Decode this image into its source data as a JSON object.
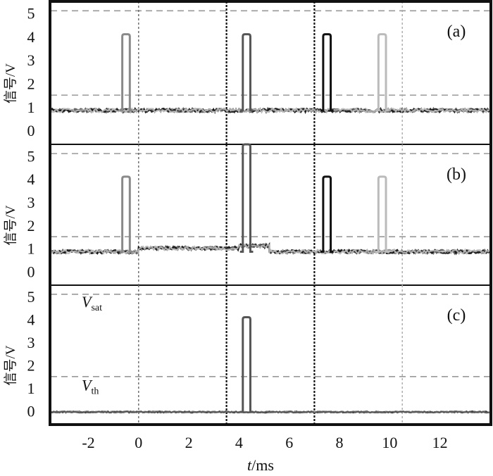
{
  "chart_data": {
    "type": "line",
    "xlabel": {
      "var": "t",
      "unit": "/ms"
    },
    "ylabel": "信号/V",
    "xlim": [
      -3.5,
      14
    ],
    "x_ticks": [
      -2,
      0,
      2,
      4,
      6,
      8,
      10,
      12
    ],
    "y_ticks": [
      0,
      1,
      2,
      3,
      4,
      5
    ],
    "ylim": [
      -0.6,
      5.5
    ],
    "grid": "off",
    "vertical_markers": [
      {
        "x": 0,
        "style": "dotted-grey"
      },
      {
        "x": 3.5,
        "style": "dotted-black"
      },
      {
        "x": 7,
        "style": "dotted-black"
      },
      {
        "x": 10.5,
        "style": "dotted-light"
      }
    ],
    "panels": [
      {
        "label": "(a)",
        "reference_lines": {
          "V_sat": 5.1,
          "V_th": 1.5
        },
        "baseline_segments": [
          {
            "x_start": -3.5,
            "x_end": 14,
            "level": 0.85,
            "ripple": 0.08
          }
        ],
        "series": [
          {
            "color": "#8a8a8a",
            "pulse_start": -0.65,
            "pulse_end": -0.35,
            "peak": 4.1
          },
          {
            "color": "#555555",
            "pulse_start": 4.15,
            "pulse_end": 4.45,
            "peak": 4.1
          },
          {
            "color": "#111111",
            "pulse_start": 7.35,
            "pulse_end": 7.65,
            "peak": 4.1
          },
          {
            "color": "#bbbbbb",
            "pulse_start": 9.55,
            "pulse_end": 9.85,
            "peak": 4.1
          }
        ]
      },
      {
        "label": "(b)",
        "reference_lines": {
          "V_sat": 5.1,
          "V_th": 1.5
        },
        "baseline_segments": [
          {
            "x_start": -3.5,
            "x_end": 0,
            "level": 0.85,
            "ripple": 0.08
          },
          {
            "x_start": 0,
            "x_end": 4,
            "level": 1.0,
            "ripple": 0.08
          },
          {
            "x_start": 4,
            "x_end": 5.2,
            "level": 1.1,
            "ripple": 0.08
          },
          {
            "x_start": 5.2,
            "x_end": 14,
            "level": 0.85,
            "ripple": 0.08
          }
        ],
        "series": [
          {
            "color": "#8a8a8a",
            "pulse_start": -0.65,
            "pulse_end": -0.35,
            "peak": 4.1
          },
          {
            "color": "#555555",
            "pulse_start": 4.15,
            "pulse_end": 4.45,
            "peak": 5.5
          },
          {
            "color": "#111111",
            "pulse_start": 7.35,
            "pulse_end": 7.65,
            "peak": 4.1
          },
          {
            "color": "#bbbbbb",
            "pulse_start": 9.55,
            "pulse_end": 9.85,
            "peak": 4.1
          }
        ]
      },
      {
        "label": "(c)",
        "reference_lines": {
          "V_sat": 5.1,
          "V_th": 1.5
        },
        "reference_labels": {
          "sat": {
            "main": "V",
            "sub": "sat"
          },
          "th": {
            "main": "V",
            "sub": "th"
          }
        },
        "baseline_segments": [
          {
            "x_start": -3.5,
            "x_end": 14,
            "level": -0.05,
            "ripple": 0.03
          }
        ],
        "series": [
          {
            "color": "#555555",
            "pulse_start": 4.15,
            "pulse_end": 4.45,
            "peak": 4.1
          }
        ]
      }
    ]
  }
}
